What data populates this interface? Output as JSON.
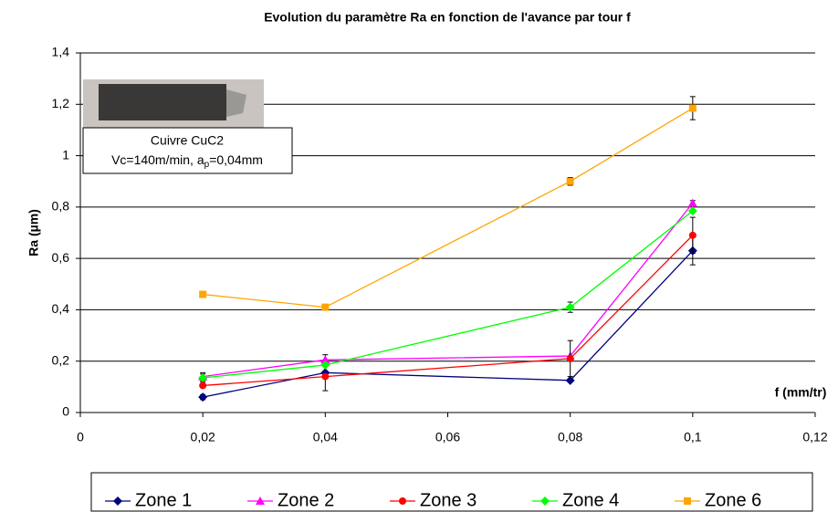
{
  "chart_data": {
    "type": "line",
    "title": "Evolution du paramètre Ra en fonction de l'avance par tour f",
    "y_label": "Ra (µm)",
    "x_label": "f (mm/tr)",
    "annotations": [
      "Cuivre CuC2",
      "Vc=140m/min, a",
      "p",
      "=0,04mm"
    ],
    "x": [
      0.02,
      0.04,
      0.08,
      0.1
    ],
    "xlim": [
      0,
      0.12
    ],
    "xticks": [
      0,
      {
        "value": 0.02,
        "label": "0,02"
      },
      {
        "value": 0.04,
        "label": "0,04"
      },
      {
        "value": 0.06,
        "label": "0,06"
      },
      {
        "value": 0.08,
        "label": "0,08"
      },
      {
        "value": 0.1,
        "label": "0,1"
      },
      {
        "value": 0.12,
        "label": "0,12"
      }
    ],
    "ylim": [
      0,
      1.4
    ],
    "yticks": [
      0,
      {
        "value": 0.2,
        "label": "0,2"
      },
      {
        "value": 0.4,
        "label": "0,4"
      },
      {
        "value": 0.6,
        "label": "0,6"
      },
      {
        "value": 0.8,
        "label": "0,8"
      },
      1,
      {
        "value": 1.2,
        "label": "1,2"
      },
      {
        "value": 1.4,
        "label": "1,4"
      }
    ],
    "grid": true,
    "legend": "bottom",
    "series": [
      {
        "name": "Zone 1",
        "color": "#000080",
        "marker": "diamond",
        "values": [
          0.06,
          0.155,
          0.125,
          0.63
        ],
        "errors": [
          0.01,
          0.07,
          null,
          0.055
        ]
      },
      {
        "name": "Zone 2",
        "color": "#ff00ff",
        "marker": "triangle",
        "values": [
          0.14,
          0.205,
          0.22,
          0.815
        ],
        "errors": [
          0.015,
          null,
          null,
          0.01
        ]
      },
      {
        "name": "Zone 3",
        "color": "#ff0000",
        "marker": "circle",
        "values": [
          0.105,
          0.14,
          0.21,
          0.69
        ],
        "errors": [
          null,
          null,
          0.07,
          0.07
        ]
      },
      {
        "name": "Zone 4",
        "color": "#00ff00",
        "marker": "diamond",
        "values": [
          0.135,
          0.185,
          0.41,
          0.785
        ],
        "errors": [
          0.015,
          null,
          0.02,
          null
        ]
      },
      {
        "name": "Zone 6",
        "color": "#ffa500",
        "marker": "square",
        "values": [
          0.46,
          0.41,
          0.9,
          1.185
        ],
        "errors": [
          null,
          null,
          0.015,
          0.045
        ]
      }
    ]
  }
}
